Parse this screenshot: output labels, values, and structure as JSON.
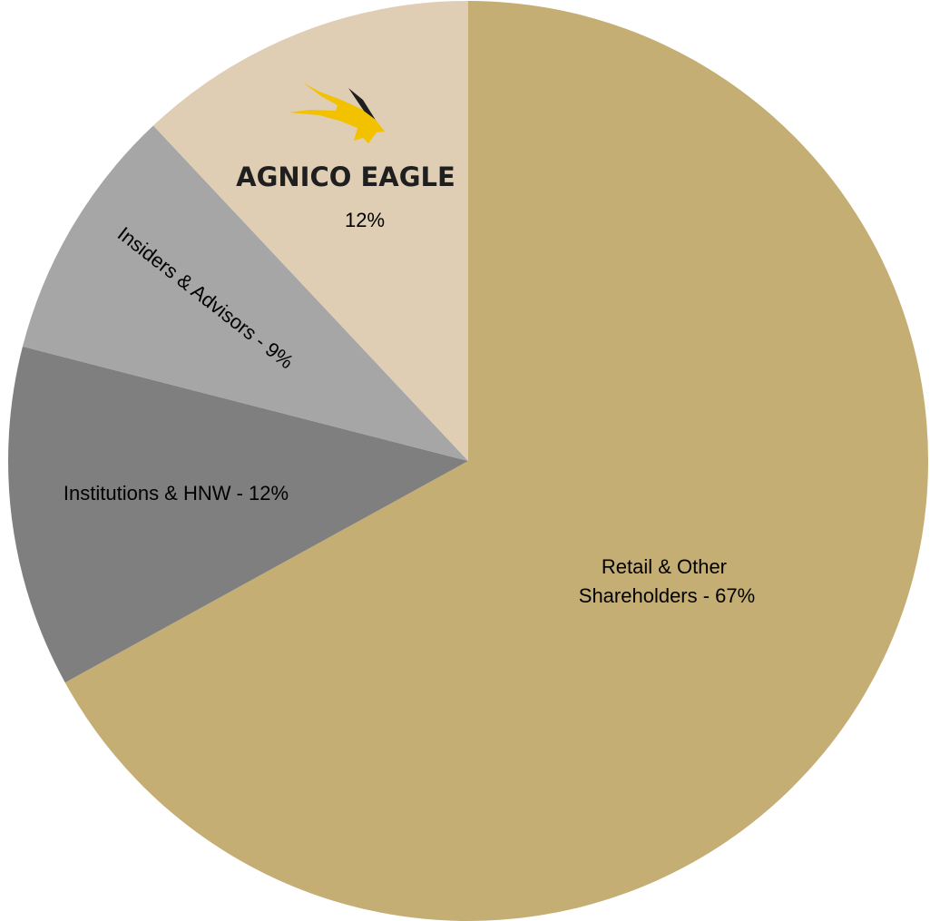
{
  "chart_data": {
    "type": "pie",
    "title": "",
    "start_angle_deg": 0,
    "direction": "clockwise",
    "slices": [
      {
        "id": "retail",
        "label_lines": [
          "Retail & Other",
          "Shareholders  - 67%"
        ],
        "value": 67,
        "color": "#c4ae73"
      },
      {
        "id": "institutions",
        "label_lines": [
          "Institutions & HNW  - 12%"
        ],
        "value": 12,
        "color": "#7f7f7f"
      },
      {
        "id": "insiders",
        "label_lines": [
          "Insiders & Advisors  - 9%"
        ],
        "value": 9,
        "color": "#a6a6a6"
      },
      {
        "id": "agnico",
        "label_lines": [
          "12%"
        ],
        "value": 12,
        "color": "#dfceb4",
        "logo": {
          "name": "agnico-eagle-logo",
          "text": "AGNICO EAGLE",
          "icon": "eagle-icon",
          "icon_color": "#f2c200",
          "icon_dark_color": "#1f1f1f"
        }
      }
    ]
  }
}
